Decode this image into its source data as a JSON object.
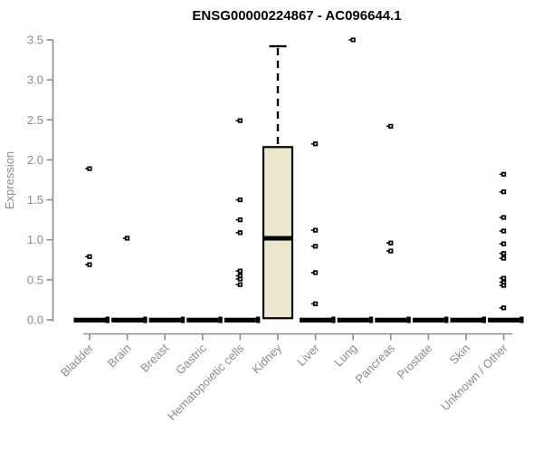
{
  "chart_data": {
    "type": "boxplot",
    "title": "ENSG00000224867 - AC096644.1",
    "ylabel": "Expression",
    "xlabel": "",
    "ylim": [
      0,
      3.5
    ],
    "yticks": [
      "0.0",
      "0.5",
      "1.0",
      "1.5",
      "2.0",
      "2.5",
      "3.0",
      "3.5"
    ],
    "grid": false,
    "legend": "none",
    "categories": [
      "Bladder",
      "Brain",
      "Breast",
      "Gastric",
      "Hematopoietic cells",
      "Kidney",
      "Liver",
      "Lung",
      "Pancreas",
      "Prostate",
      "Skin",
      "Unknown / Other"
    ],
    "series": [
      {
        "category": "Bladder",
        "box": {
          "median": 0
        },
        "outliers": [
          1.89,
          0.79,
          0.69
        ]
      },
      {
        "category": "Brain",
        "box": {
          "median": 0
        },
        "outliers": [
          1.02
        ]
      },
      {
        "category": "Breast",
        "box": {
          "median": 0
        },
        "outliers": []
      },
      {
        "category": "Gastric",
        "box": {
          "median": 0
        },
        "outliers": []
      },
      {
        "category": "Hematopoietic cells",
        "box": {
          "median": 0
        },
        "outliers": [
          2.49,
          1.5,
          1.25,
          1.09,
          0.61,
          0.55,
          0.51,
          0.44
        ]
      },
      {
        "category": "Kidney",
        "box": {
          "q1": 0.02,
          "median": 1.02,
          "q3": 2.16,
          "whisker_high": 3.42,
          "whisker_low": 0
        },
        "outliers": []
      },
      {
        "category": "Liver",
        "box": {
          "median": 0
        },
        "outliers": [
          2.2,
          1.12,
          0.92,
          0.59,
          0.2
        ]
      },
      {
        "category": "Lung",
        "box": {
          "median": 0
        },
        "outliers": [
          3.5
        ]
      },
      {
        "category": "Pancreas",
        "box": {
          "median": 0
        },
        "outliers": [
          2.42,
          0.96,
          0.86
        ]
      },
      {
        "category": "Prostate",
        "box": {
          "median": 0
        },
        "outliers": []
      },
      {
        "category": "Skin",
        "box": {
          "median": 0
        },
        "outliers": []
      },
      {
        "category": "Unknown / Other",
        "box": {
          "median": 0
        },
        "outliers": [
          1.82,
          1.6,
          1.28,
          1.11,
          0.95,
          0.83,
          0.77,
          0.52,
          0.47,
          0.43,
          0.15
        ]
      }
    ],
    "colors": {
      "box_fill": "#EDE8CD",
      "box_border": "#000000",
      "median": "#000000",
      "axis": "#8C8C8C",
      "tick_text": "#8C8C8C",
      "title_text": "#000000",
      "background": "#FFFFFF"
    }
  }
}
